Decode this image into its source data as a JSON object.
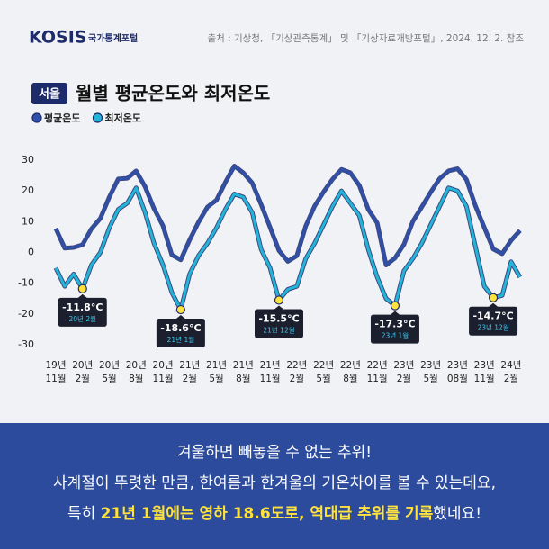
{
  "header": {
    "logo": "KOSIS",
    "logo_sub": "국가통계포털",
    "source": "출처 : 기상청, 「기상관측통계」 및 「기상자료개방포털」, 2024. 12. 2. 참조"
  },
  "chart_data": {
    "type": "line",
    "badge": "서울",
    "title": "월별 평균온도와 최저온도",
    "categories": [
      "19년 11월",
      null,
      null,
      "20년 2월",
      null,
      null,
      "20년 5월",
      null,
      null,
      "20년 8월",
      null,
      null,
      "20년 11월",
      null,
      null,
      "21년 2월",
      null,
      null,
      "21년 5월",
      null,
      null,
      "21년 8월",
      null,
      null,
      "21년 11월",
      null,
      null,
      "22년 2월",
      null,
      null,
      "22년 5월",
      null,
      null,
      "22년 8월",
      null,
      null,
      "22년 11월",
      null,
      null,
      "23년 2월",
      null,
      null,
      "23년 5월",
      null,
      null,
      "23년 08월",
      null,
      null,
      "23년 11월",
      null,
      null,
      "24년 2월",
      null
    ],
    "series": [
      {
        "name": "평균온도",
        "color": "#2f4fa8",
        "values": [
          7.8,
          1.4,
          1.6,
          2.5,
          7.7,
          11.1,
          18.0,
          23.9,
          24.1,
          26.5,
          21.4,
          14.3,
          8.7,
          -0.8,
          -2.4,
          4.1,
          9.9,
          14.8,
          17.0,
          22.8,
          28.1,
          25.9,
          22.6,
          15.6,
          8.2,
          0.6,
          -2.9,
          -1.1,
          8.6,
          15.1,
          19.7,
          23.8,
          27.0,
          25.9,
          21.8,
          14.0,
          9.6,
          -4.1,
          -1.8,
          2.6,
          10.1,
          14.8,
          19.6,
          24.0,
          26.5,
          27.2,
          23.7,
          15.2,
          8.1,
          1.1,
          -0.4,
          3.9,
          7.1
        ]
      },
      {
        "name": "최저온도",
        "color": "#22b5d8",
        "values": [
          -5,
          -11,
          -7,
          -11.8,
          -4,
          0,
          8,
          14,
          16,
          21,
          13,
          3,
          -4,
          -13,
          -18.6,
          -7,
          -1,
          3,
          8,
          14,
          19,
          18,
          13,
          1,
          -5,
          -15.5,
          -12,
          -11,
          -2,
          3,
          9,
          15,
          20,
          16,
          12,
          1,
          -8,
          -15,
          -17.3,
          -6,
          -2,
          3,
          9,
          15,
          21,
          20,
          15,
          2,
          -11,
          -14.7,
          -14,
          -3,
          -8
        ]
      }
    ],
    "annotations": [
      {
        "value": -11.8,
        "label": "-11.8°C",
        "date": "20년 2월"
      },
      {
        "value": -18.6,
        "label": "-18.6°C",
        "date": "21년 1월"
      },
      {
        "value": -15.5,
        "label": "-15.5°C",
        "date": "21년 12월"
      },
      {
        "value": -17.3,
        "label": "-17.3°C",
        "date": "23년 1월"
      },
      {
        "value": -14.7,
        "label": "-14.7°C",
        "date": "23년 12월"
      }
    ],
    "ylim": [
      -30,
      30
    ],
    "yticks": [
      30,
      20,
      10,
      0,
      -10,
      -20,
      -30
    ],
    "grid": false
  },
  "banner": {
    "lines": [
      [
        "겨울하면 빼놓을 수 없는 추위!"
      ],
      [
        "사계절이 뚜렷한 만큼, 한여름과 한겨울의 기온차이를 볼 수 있는데요,"
      ],
      [
        "특히 ",
        "21년 1월에는 영하 18.6도로, 역대급 추위를 기록",
        "했네요!"
      ]
    ]
  }
}
